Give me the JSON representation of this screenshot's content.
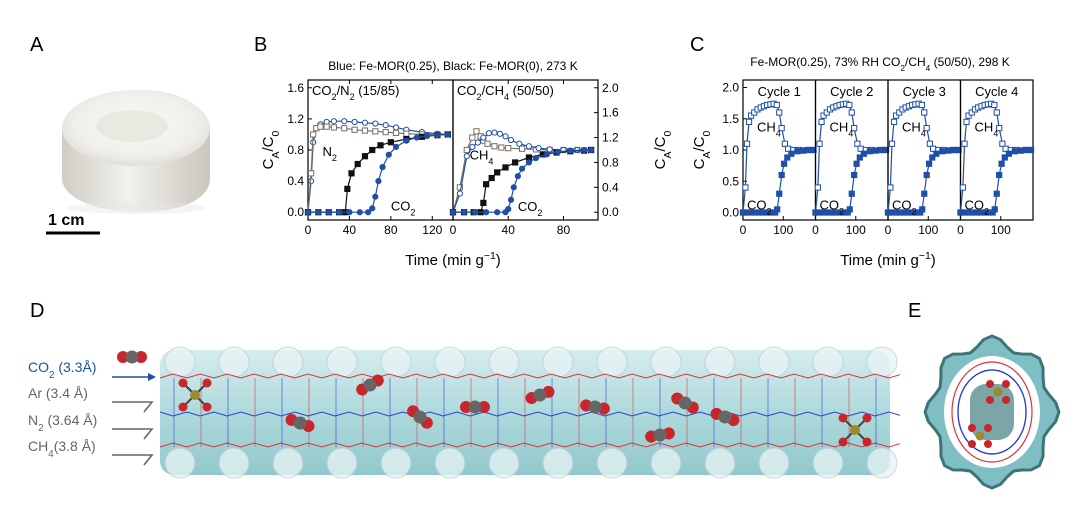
{
  "panels": {
    "A": "A",
    "B": "B",
    "C": "C",
    "D": "D",
    "E": "E"
  },
  "photo": {
    "scale_label": "1 cm"
  },
  "colors": {
    "blue": "#1f4fa8",
    "black": "#111111",
    "gray": "#7a6e64",
    "teal": "#9fd5d8",
    "red": "#d9343a",
    "link_blue": "#2a3fd0"
  },
  "chart_data": [
    {
      "id": "B",
      "type": "line",
      "header": "Blue: Fe-MOR(0.25), Black: Fe-MOR(0), 273 K",
      "xlabel": "Time (min g",
      "xlabel_sup": "−1",
      "xlabel_end": ")",
      "ylabel_left": {
        "main": "C",
        "sub1": "A",
        "mid": "/C",
        "sub2": "0"
      },
      "ylabel_right": {
        "main": "C",
        "sub1": "A",
        "mid": "/C",
        "sub2": "0"
      },
      "subplots": [
        {
          "title": "CO",
          "title_sub": "2",
          "title_rest": "/N",
          "title_sub2": "2",
          "title_end": " (15/85)",
          "xlim": [
            0,
            140
          ],
          "ylim": [
            -0.1,
            1.7
          ],
          "xticks": [
            0,
            40,
            80,
            120
          ],
          "xtick_labels": [
            "0",
            "40",
            "80",
            "120"
          ],
          "yticks": [
            0.0,
            0.4,
            0.8,
            1.2,
            1.6
          ],
          "ytick_labels": [
            "0.0",
            "0.4",
            "0.8",
            "1.2",
            "1.6"
          ],
          "labels": [
            {
              "text": "N",
              "sub": "2",
              "x": 14,
              "y": 0.72
            },
            {
              "text": "CO",
              "sub": "2",
              "x": 80,
              "y": 0.02
            }
          ],
          "series": [
            {
              "name": "Fe-MOR(0.25) N2",
              "color": "#1f4fa8",
              "marker": "open-circle",
              "x": [
                0,
                3,
                5,
                8,
                12,
                18,
                25,
                35,
                45,
                55,
                65,
                75,
                85,
                95,
                110,
                125,
                135
              ],
              "y": [
                0.0,
                0.4,
                0.9,
                1.08,
                1.13,
                1.16,
                1.17,
                1.17,
                1.16,
                1.15,
                1.14,
                1.12,
                1.09,
                1.06,
                1.03,
                1.01,
                1.0
              ]
            },
            {
              "name": "Fe-MOR(0) N2",
              "color": "#7a6e64",
              "marker": "open-square",
              "x": [
                0,
                3,
                5,
                8,
                12,
                18,
                25,
                35,
                45,
                55,
                65,
                75,
                85,
                95,
                110,
                125,
                135
              ],
              "y": [
                0.0,
                0.5,
                1.0,
                1.08,
                1.1,
                1.1,
                1.09,
                1.08,
                1.06,
                1.05,
                1.04,
                1.03,
                1.02,
                1.01,
                1.0,
                1.0,
                1.0
              ]
            },
            {
              "name": "Fe-MOR(0) CO2",
              "color": "#111111",
              "marker": "filled-square",
              "x": [
                0,
                10,
                20,
                30,
                36,
                38,
                42,
                48,
                55,
                62,
                70,
                80,
                95,
                110,
                125,
                135
              ],
              "y": [
                0,
                0,
                0,
                0,
                0,
                0.3,
                0.5,
                0.62,
                0.72,
                0.8,
                0.86,
                0.9,
                0.94,
                0.97,
                0.99,
                1.0
              ]
            },
            {
              "name": "Fe-MOR(0.25) CO2",
              "color": "#1f4fa8",
              "marker": "filled-circle",
              "x": [
                0,
                10,
                20,
                30,
                40,
                50,
                58,
                62,
                65,
                68,
                72,
                78,
                85,
                95,
                105,
                115,
                125,
                135
              ],
              "y": [
                0,
                0,
                0,
                0,
                0,
                0,
                0,
                0.05,
                0.2,
                0.4,
                0.58,
                0.74,
                0.84,
                0.92,
                0.96,
                0.98,
                0.99,
                1.0
              ]
            }
          ]
        },
        {
          "title": "CO",
          "title_sub": "2",
          "title_rest": "/CH",
          "title_sub2": "4",
          "title_end": " (50/50)",
          "xlim": [
            0,
            105
          ],
          "ylim": [
            -0.125,
            2.125
          ],
          "xticks": [
            0,
            40,
            80
          ],
          "xtick_labels": [
            "0",
            "40",
            "80"
          ],
          "yticks": [
            0.0,
            0.4,
            0.8,
            1.2,
            1.6,
            2.0
          ],
          "ytick_labels": [
            "0.0",
            "0.4",
            "0.8",
            "1.2",
            "1.6",
            "2.0"
          ],
          "labels": [
            {
              "text": "CH",
              "sub": "4",
              "x": 12,
              "y": 0.85
            },
            {
              "text": "CO",
              "sub": "2",
              "x": 47,
              "y": 0.02
            }
          ],
          "series": [
            {
              "name": "Fe-MOR(0) CH4",
              "color": "#7a6e64",
              "marker": "open-square",
              "x": [
                0,
                5,
                10,
                14,
                17,
                20,
                22,
                25,
                30,
                35,
                40,
                50,
                60,
                70,
                80,
                90,
                100
              ],
              "y": [
                0.0,
                0.4,
                1.0,
                1.2,
                1.3,
                1.22,
                1.15,
                1.1,
                1.06,
                1.04,
                1.03,
                1.02,
                1.01,
                1.0,
                1.0,
                1.0,
                1.0
              ]
            },
            {
              "name": "Fe-MOR(0.25) CH4",
              "color": "#1f4fa8",
              "marker": "open-circle",
              "x": [
                0,
                5,
                10,
                14,
                18,
                22,
                26,
                30,
                34,
                38,
                42,
                48,
                55,
                62,
                70,
                80,
                90,
                100
              ],
              "y": [
                0.0,
                0.3,
                0.9,
                1.05,
                1.12,
                1.2,
                1.27,
                1.28,
                1.26,
                1.22,
                1.16,
                1.1,
                1.06,
                1.03,
                1.01,
                1.0,
                1.0,
                1.0
              ]
            },
            {
              "name": "Fe-MOR(0) CO2",
              "color": "#111111",
              "marker": "filled-square",
              "x": [
                0,
                8,
                15,
                20,
                22,
                24,
                28,
                32,
                38,
                45,
                55,
                65,
                75,
                85,
                95,
                100
              ],
              "y": [
                0,
                0,
                0,
                0,
                0.15,
                0.45,
                0.55,
                0.64,
                0.72,
                0.8,
                0.88,
                0.93,
                0.96,
                0.98,
                0.99,
                1.0
              ]
            },
            {
              "name": "Fe-MOR(0.25) CO2",
              "color": "#1f4fa8",
              "marker": "filled-circle",
              "x": [
                0,
                8,
                16,
                24,
                32,
                38,
                40,
                42,
                44,
                47,
                50,
                55,
                60,
                68,
                76,
                85,
                95,
                100
              ],
              "y": [
                0,
                0,
                0,
                0,
                0,
                0,
                0.05,
                0.2,
                0.4,
                0.58,
                0.7,
                0.8,
                0.87,
                0.93,
                0.97,
                0.99,
                1.0,
                1.0
              ]
            }
          ]
        }
      ]
    },
    {
      "id": "C",
      "type": "line",
      "header": "Fe-MOR(0.25), 73% RH CO",
      "header_sub": "2",
      "header_rest": "/CH",
      "header_sub2": "4",
      "header_end": " (50/50), 298 K",
      "xlabel": "Time (min g",
      "xlabel_sup": "−1",
      "xlabel_end": ")",
      "ylabel": {
        "main": "C",
        "sub1": "A",
        "mid": "/C",
        "sub2": "0"
      },
      "xlim": [
        0,
        180
      ],
      "ylim": [
        -0.12,
        2.12
      ],
      "xticks": [
        0,
        100
      ],
      "xtick_labels": [
        "0",
        "100"
      ],
      "yticks": [
        0.0,
        0.5,
        1.0,
        1.5,
        2.0
      ],
      "ytick_labels": [
        "0.0",
        "0.5",
        "1.0",
        "1.5",
        "2.0"
      ],
      "cycles": [
        {
          "title": "Cycle 1"
        },
        {
          "title": "Cycle 2"
        },
        {
          "title": "Cycle 3"
        },
        {
          "title": "Cycle 4"
        }
      ],
      "ch4_label": {
        "text": "CH",
        "sub": "4"
      },
      "co2_label": {
        "text": "CO",
        "sub": "2"
      },
      "series": [
        {
          "name": "CH4",
          "color": "#1f4fa8",
          "marker": "open-square",
          "x": [
            0,
            6,
            10,
            15,
            20,
            28,
            36,
            44,
            52,
            60,
            68,
            76,
            84,
            90,
            96,
            104,
            112,
            125,
            140,
            160,
            175
          ],
          "y": [
            0.0,
            0.4,
            1.1,
            1.45,
            1.55,
            1.6,
            1.65,
            1.68,
            1.7,
            1.72,
            1.73,
            1.74,
            1.72,
            1.6,
            1.35,
            1.1,
            1.02,
            1.0,
            1.0,
            1.0,
            1.0
          ]
        },
        {
          "name": "CO2",
          "color": "#1f4fa8",
          "marker": "filled-square",
          "x": [
            0,
            10,
            20,
            30,
            40,
            50,
            60,
            70,
            80,
            85,
            90,
            96,
            102,
            110,
            120,
            135,
            150,
            165,
            175
          ],
          "y": [
            0,
            0,
            0,
            0,
            0,
            0,
            0,
            0,
            0,
            0.05,
            0.3,
            0.6,
            0.78,
            0.88,
            0.94,
            0.98,
            0.99,
            1.0,
            1.0
          ]
        }
      ]
    }
  ],
  "framework": {
    "gas_labels": [
      {
        "text": "CO",
        "sub": "2",
        "rest": " (3.3Å)",
        "color": "#1f4fa8"
      },
      {
        "text": "Ar (3.4 Å)",
        "sub": "",
        "rest": "",
        "color": "#666666"
      },
      {
        "text": "N",
        "sub": "2",
        "rest": " (3.64 Å)",
        "color": "#666666"
      },
      {
        "text": "CH",
        "sub": "4",
        "rest": "(3.8 Å)",
        "color": "#666666"
      }
    ]
  }
}
